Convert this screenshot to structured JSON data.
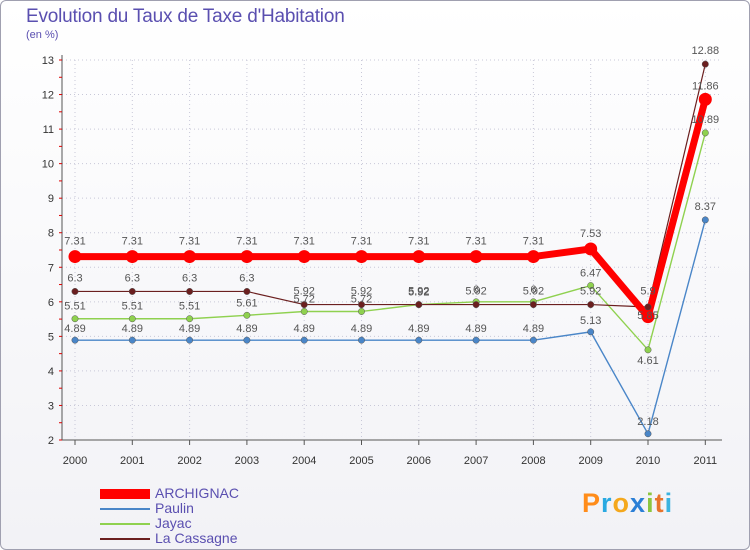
{
  "chart_data": {
    "type": "line",
    "title": "Evolution du Taux de Taxe d'Habitation",
    "ylabel": "(en %)",
    "xlabel": "",
    "ylim": [
      2,
      13
    ],
    "yticks": [
      2,
      3,
      4,
      5,
      6,
      7,
      8,
      9,
      10,
      11,
      12,
      13
    ],
    "categories": [
      "2000",
      "2001",
      "2002",
      "2003",
      "2004",
      "2005",
      "2006",
      "2007",
      "2008",
      "2009",
      "2010",
      "2011"
    ],
    "series": [
      {
        "name": "ARCHIGNAC",
        "color": "#ff0000",
        "values": [
          7.31,
          7.31,
          7.31,
          7.31,
          7.31,
          7.31,
          7.31,
          7.31,
          7.31,
          7.53,
          5.57,
          11.86
        ],
        "labels": [
          "7.31",
          "7.31",
          "7.31",
          "7.31",
          "7.31",
          "7.31",
          "7.31",
          "7.31",
          "7.31",
          "7.53",
          "",
          "11.86"
        ]
      },
      {
        "name": "Paulin",
        "color": "#4a86c8",
        "values": [
          4.89,
          4.89,
          4.89,
          4.89,
          4.89,
          4.89,
          4.89,
          4.89,
          4.89,
          5.13,
          2.18,
          8.37
        ],
        "labels": [
          "4.89",
          "4.89",
          "4.89",
          "4.89",
          "4.89",
          "4.89",
          "4.89",
          "4.89",
          "4.89",
          "5.13",
          "2.18",
          "8.37"
        ]
      },
      {
        "name": "Jayac",
        "color": "#8fd14f",
        "values": [
          5.51,
          5.51,
          5.51,
          5.61,
          5.72,
          5.72,
          5.92,
          6.0,
          6.0,
          6.47,
          4.61,
          10.89
        ],
        "labels": [
          "5.51",
          "5.51",
          "5.51",
          "5.61",
          "5.72",
          "5.72",
          "5.92",
          "6",
          "6",
          "6.47",
          "4.61",
          "10.89"
        ]
      },
      {
        "name": "La Cassagne",
        "color": "#6b1f1f",
        "values": [
          6.3,
          6.3,
          6.3,
          6.3,
          5.92,
          5.92,
          5.92,
          5.92,
          5.92,
          5.92,
          5.85,
          12.88
        ],
        "labels": [
          "6.3",
          "6.3",
          "6.3",
          "6.3",
          "5.92",
          "5.92",
          "5.92",
          "5.92",
          "5.92",
          "5.92",
          "5.85",
          "12.88"
        ]
      }
    ],
    "extra_labels": [
      "5.9"
    ],
    "legend": "bottom-left"
  },
  "logo": {
    "letters": [
      "P",
      "r",
      "o",
      "x",
      "i",
      "t",
      "i"
    ]
  }
}
